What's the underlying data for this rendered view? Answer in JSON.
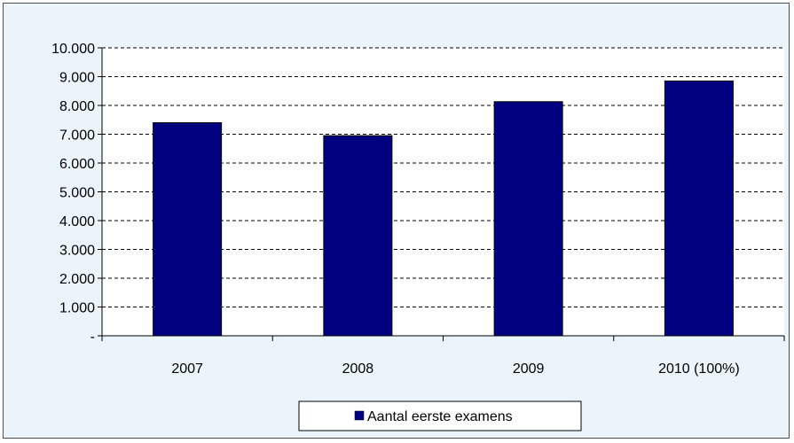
{
  "chart_data": {
    "type": "bar",
    "categories": [
      "2007",
      "2008",
      "2009",
      "2010 (100%)"
    ],
    "series": [
      {
        "name": "Aantal eerste examens",
        "values": [
          7400,
          6950,
          8130,
          8850
        ],
        "color": "#000080"
      }
    ],
    "ylim": [
      0,
      10000
    ],
    "yticks": [
      0,
      1000,
      2000,
      3000,
      4000,
      5000,
      6000,
      7000,
      8000,
      9000,
      10000
    ],
    "ytick_labels": [
      "-",
      "1.000",
      "2.000",
      "3.000",
      "4.000",
      "5.000",
      "6.000",
      "7.000",
      "8.000",
      "9.000",
      "10.000"
    ],
    "grid": true,
    "legend_position": "bottom",
    "title": "",
    "xlabel": "",
    "ylabel": ""
  },
  "colors": {
    "plot_background": "#ffffff",
    "frame_background": "#eaf4fa",
    "bar_fill": "#000080"
  }
}
